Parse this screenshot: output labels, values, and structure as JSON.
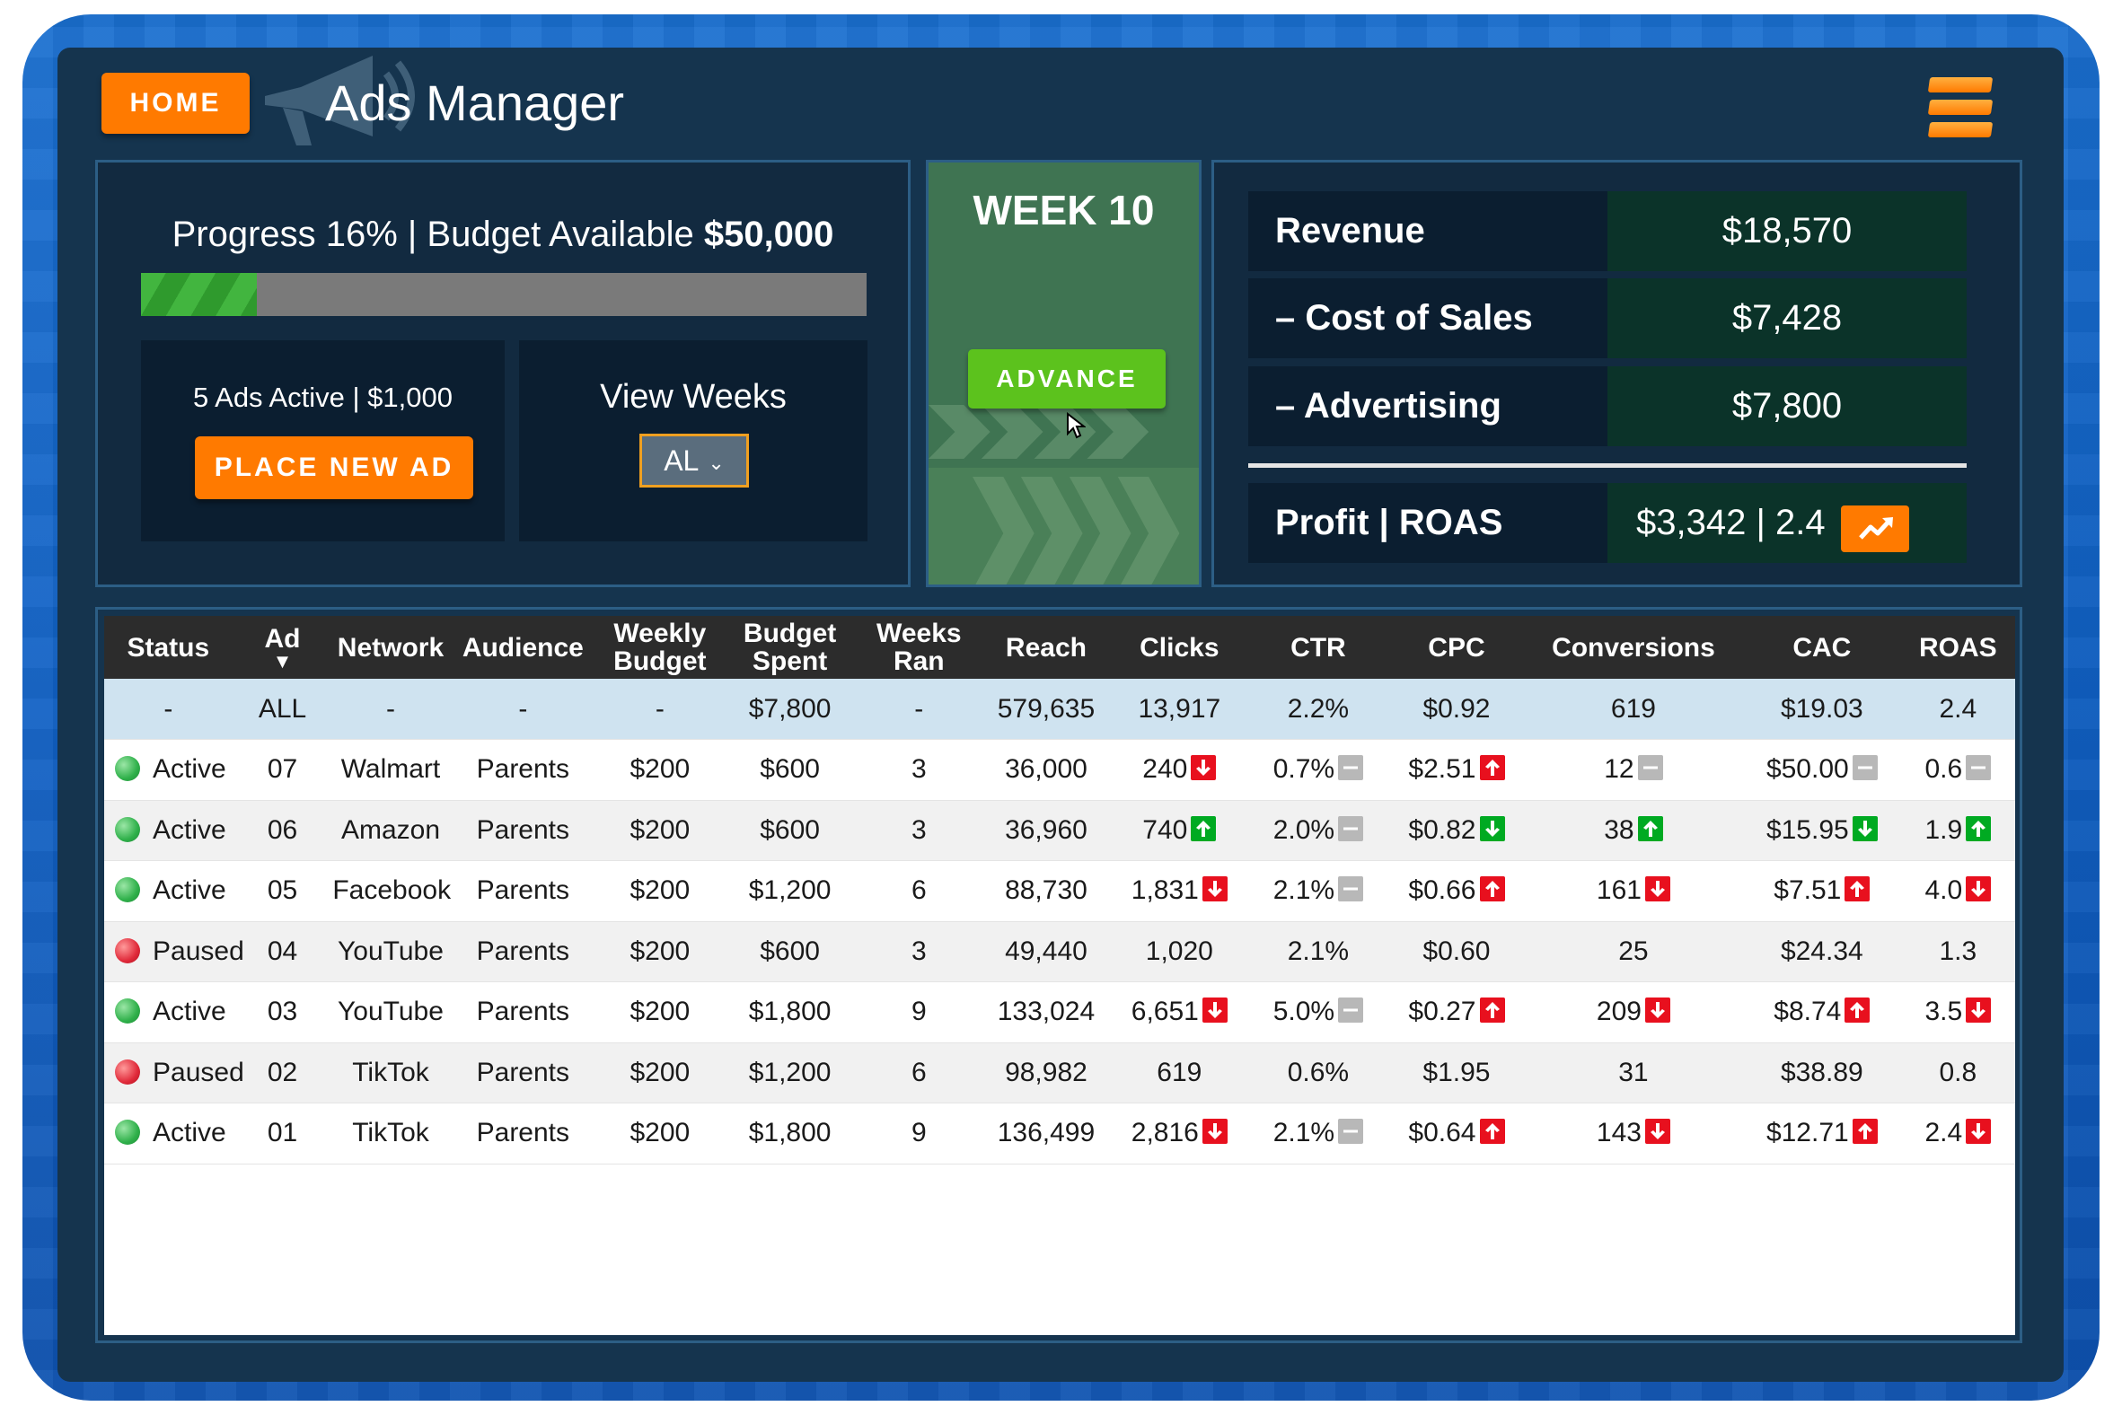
{
  "header": {
    "home_label": "HOME",
    "title": "Ads Manager"
  },
  "progress": {
    "prefix": "Progress 16% | Budget Available ",
    "budget": "$50,000",
    "percent": 16
  },
  "ads": {
    "summary": "5 Ads Active | $1,000",
    "place_label": "PLACE NEW AD"
  },
  "weeks": {
    "label": "View Weeks",
    "selected": "AL"
  },
  "week": {
    "title": "WEEK 10",
    "advance_label": "ADVANCE"
  },
  "finance": {
    "revenue_label": "Revenue",
    "revenue_value": "$18,570",
    "cost_label": "– Cost of Sales",
    "cost_value": "$7,428",
    "advertising_label": "– Advertising",
    "advertising_value": "$7,800",
    "profit_label": "Profit | ROAS",
    "profit_value": "$3,342 | 2.4"
  },
  "colors": {
    "accent": "#ff7a00",
    "advance": "#5cc21d",
    "panel": "#15344e",
    "up": "#00aa22",
    "down": "#e8101e",
    "neutral": "#b8b8b8"
  },
  "table": {
    "headers": {
      "status": "Status",
      "ad": "Ad",
      "network": "Network",
      "audience": "Audience",
      "weekly_budget_1": "Weekly",
      "weekly_budget_2": "Budget",
      "budget_spent_1": "Budget",
      "budget_spent_2": "Spent",
      "weeks_ran_1": "Weeks",
      "weeks_ran_2": "Ran",
      "reach": "Reach",
      "clicks": "Clicks",
      "ctr": "CTR",
      "cpc": "CPC",
      "conversions": "Conversions",
      "cac": "CAC",
      "roas": "ROAS"
    },
    "summary": {
      "status": "-",
      "ad": "ALL",
      "network": "-",
      "audience": "-",
      "weekly_budget": "-",
      "budget_spent": "$7,800",
      "weeks_ran": "-",
      "reach": "579,635",
      "clicks": "13,917",
      "ctr": "2.2%",
      "cpc": "$0.92",
      "conversions": "619",
      "cac": "$19.03",
      "roas": "2.4"
    },
    "rows": [
      {
        "status": "Active",
        "state": "active",
        "ad": "07",
        "network": "Walmart",
        "audience": "Parents",
        "weekly_budget": "$200",
        "budget_spent": "$600",
        "weeks_ran": "3",
        "reach": "36,000",
        "clicks": "240",
        "clicks_ind": "down",
        "ctr": "0.7%",
        "ctr_ind": "neutral",
        "cpc": "$2.51",
        "cpc_ind": "up-red",
        "conversions": "12",
        "conversions_ind": "neutral",
        "cac": "$50.00",
        "cac_ind": "neutral",
        "roas": "0.6",
        "roas_ind": "neutral"
      },
      {
        "status": "Active",
        "state": "active",
        "ad": "06",
        "network": "Amazon",
        "audience": "Parents",
        "weekly_budget": "$200",
        "budget_spent": "$600",
        "weeks_ran": "3",
        "reach": "36,960",
        "clicks": "740",
        "clicks_ind": "up",
        "ctr": "2.0%",
        "ctr_ind": "neutral",
        "cpc": "$0.82",
        "cpc_ind": "down-green",
        "conversions": "38",
        "conversions_ind": "up",
        "cac": "$15.95",
        "cac_ind": "down-green",
        "roas": "1.9",
        "roas_ind": "up"
      },
      {
        "status": "Active",
        "state": "active",
        "ad": "05",
        "network": "Facebook",
        "audience": "Parents",
        "weekly_budget": "$200",
        "budget_spent": "$1,200",
        "weeks_ran": "6",
        "reach": "88,730",
        "clicks": "1,831",
        "clicks_ind": "down",
        "ctr": "2.1%",
        "ctr_ind": "neutral",
        "cpc": "$0.66",
        "cpc_ind": "up-red",
        "conversions": "161",
        "conversions_ind": "down",
        "cac": "$7.51",
        "cac_ind": "up-red",
        "roas": "4.0",
        "roas_ind": "down"
      },
      {
        "status": "Paused",
        "state": "paused",
        "ad": "04",
        "network": "YouTube",
        "audience": "Parents",
        "weekly_budget": "$200",
        "budget_spent": "$600",
        "weeks_ran": "3",
        "reach": "49,440",
        "clicks": "1,020",
        "clicks_ind": "",
        "ctr": "2.1%",
        "ctr_ind": "",
        "cpc": "$0.60",
        "cpc_ind": "",
        "conversions": "25",
        "conversions_ind": "",
        "cac": "$24.34",
        "cac_ind": "",
        "roas": "1.3",
        "roas_ind": ""
      },
      {
        "status": "Active",
        "state": "active",
        "ad": "03",
        "network": "YouTube",
        "audience": "Parents",
        "weekly_budget": "$200",
        "budget_spent": "$1,800",
        "weeks_ran": "9",
        "reach": "133,024",
        "clicks": "6,651",
        "clicks_ind": "down",
        "ctr": "5.0%",
        "ctr_ind": "neutral",
        "cpc": "$0.27",
        "cpc_ind": "up-red",
        "conversions": "209",
        "conversions_ind": "down",
        "cac": "$8.74",
        "cac_ind": "up-red",
        "roas": "3.5",
        "roas_ind": "down"
      },
      {
        "status": "Paused",
        "state": "paused",
        "ad": "02",
        "network": "TikTok",
        "audience": "Parents",
        "weekly_budget": "$200",
        "budget_spent": "$1,200",
        "weeks_ran": "6",
        "reach": "98,982",
        "clicks": "619",
        "clicks_ind": "",
        "ctr": "0.6%",
        "ctr_ind": "",
        "cpc": "$1.95",
        "cpc_ind": "",
        "conversions": "31",
        "conversions_ind": "",
        "cac": "$38.89",
        "cac_ind": "",
        "roas": "0.8",
        "roas_ind": ""
      },
      {
        "status": "Active",
        "state": "active",
        "ad": "01",
        "network": "TikTok",
        "audience": "Parents",
        "weekly_budget": "$200",
        "budget_spent": "$1,800",
        "weeks_ran": "9",
        "reach": "136,499",
        "clicks": "2,816",
        "clicks_ind": "down",
        "ctr": "2.1%",
        "ctr_ind": "neutral",
        "cpc": "$0.64",
        "cpc_ind": "up-red",
        "conversions": "143",
        "conversions_ind": "down",
        "cac": "$12.71",
        "cac_ind": "up-red",
        "roas": "2.4",
        "roas_ind": "down"
      }
    ]
  }
}
